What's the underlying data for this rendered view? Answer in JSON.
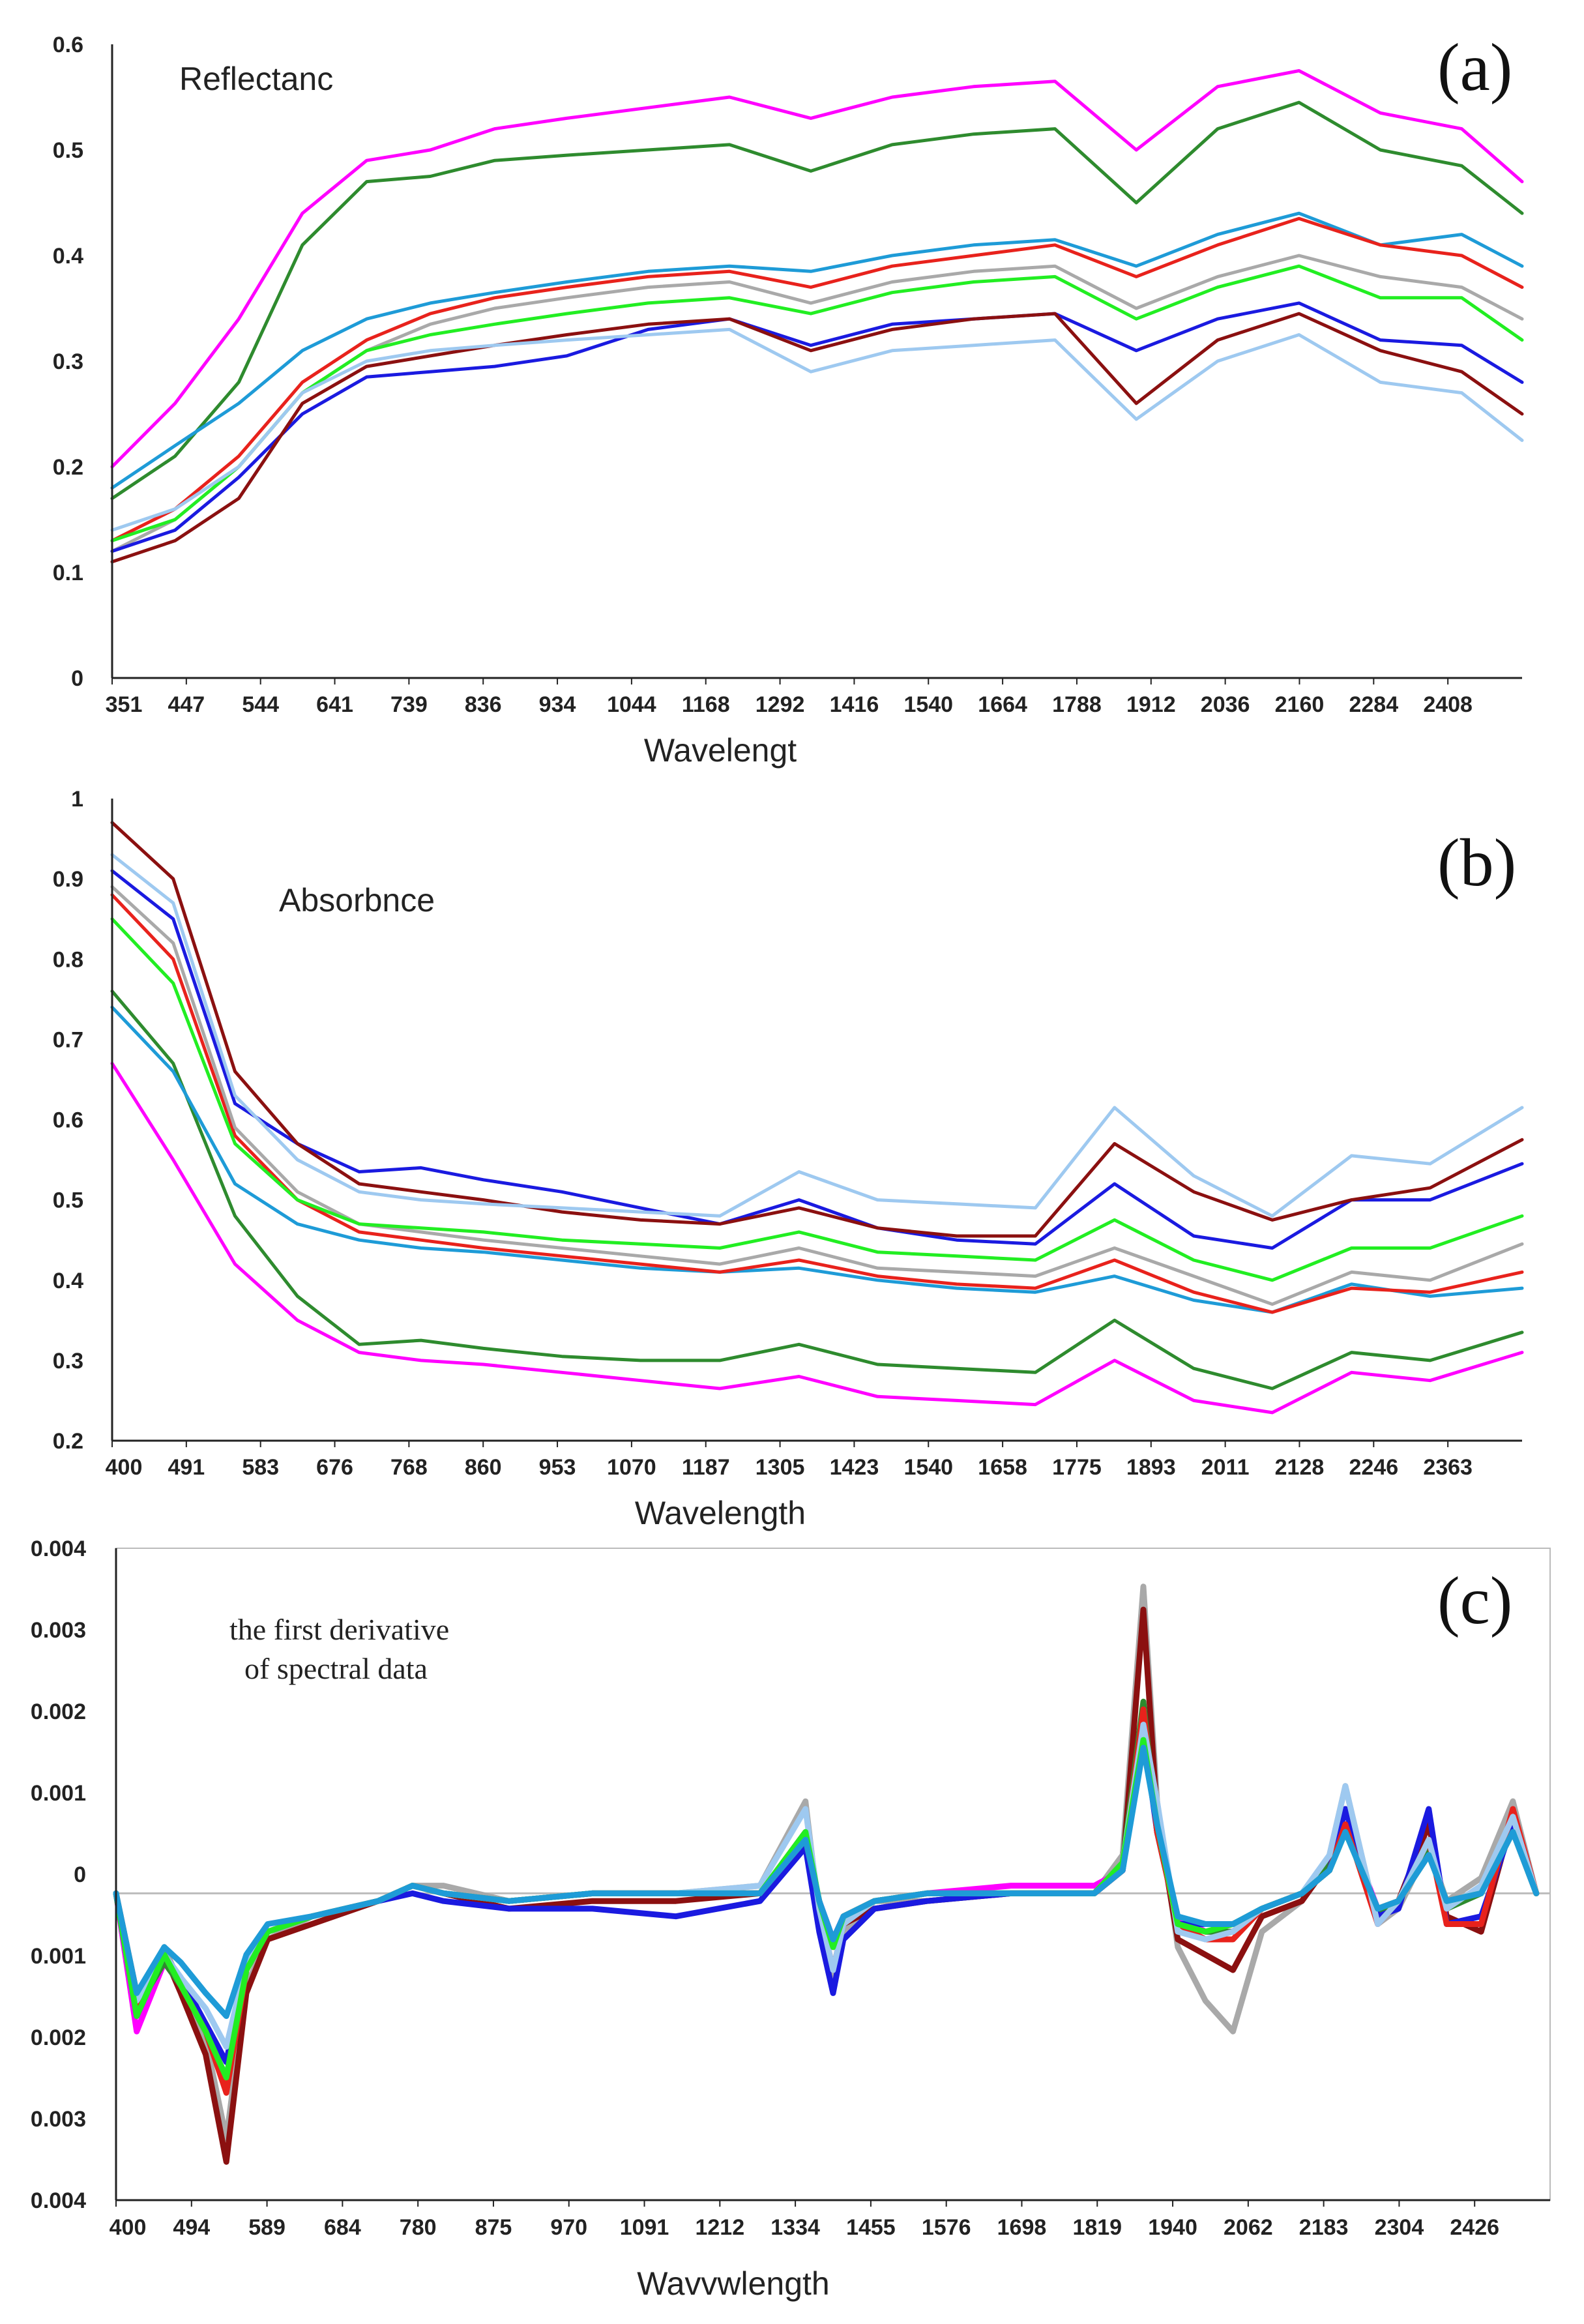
{
  "chart_data": [
    {
      "type": "line",
      "panel_label": "(a)",
      "annotation": [
        "Reflectanc"
      ],
      "xlabel": "Wavelengt",
      "ylabel": "",
      "x_ticks": [
        "351",
        "447",
        "544",
        "641",
        "739",
        "836",
        "934",
        "1044",
        "1168",
        "1292",
        "1416",
        "1540",
        "1664",
        "1788",
        "1912",
        "2036",
        "2160",
        "2284",
        "2408"
      ],
      "y_ticks": [
        "0.6",
        "0.5",
        "0.4",
        "0.3",
        "0.2",
        "0.1",
        "0"
      ],
      "xlim": [
        351,
        2500
      ],
      "ylim": [
        0,
        0.6
      ],
      "grid": false,
      "legend": "none",
      "x": [
        351,
        447,
        544,
        641,
        739,
        836,
        934,
        1044,
        1168,
        1292,
        1416,
        1540,
        1664,
        1788,
        1912,
        2036,
        2160,
        2284,
        2408,
        2500
      ],
      "series": [
        {
          "color": "#ff00ff",
          "values": [
            0.2,
            0.26,
            0.34,
            0.44,
            0.49,
            0.5,
            0.52,
            0.53,
            0.54,
            0.55,
            0.53,
            0.55,
            0.56,
            0.565,
            0.5,
            0.56,
            0.575,
            0.535,
            0.52,
            0.47
          ]
        },
        {
          "color": "#2e8b2e",
          "values": [
            0.17,
            0.21,
            0.28,
            0.41,
            0.47,
            0.475,
            0.49,
            0.495,
            0.5,
            0.505,
            0.48,
            0.505,
            0.515,
            0.52,
            0.45,
            0.52,
            0.545,
            0.5,
            0.485,
            0.44
          ]
        },
        {
          "color": "#1e9bd7",
          "values": [
            0.18,
            0.22,
            0.26,
            0.31,
            0.34,
            0.355,
            0.365,
            0.375,
            0.385,
            0.39,
            0.385,
            0.4,
            0.41,
            0.415,
            0.39,
            0.42,
            0.44,
            0.41,
            0.42,
            0.39
          ]
        },
        {
          "color": "#e8221c",
          "values": [
            0.13,
            0.16,
            0.21,
            0.28,
            0.32,
            0.345,
            0.36,
            0.37,
            0.38,
            0.385,
            0.37,
            0.39,
            0.4,
            0.41,
            0.38,
            0.41,
            0.435,
            0.41,
            0.4,
            0.37
          ]
        },
        {
          "color": "#a9a9a9",
          "values": [
            0.12,
            0.15,
            0.2,
            0.27,
            0.31,
            0.335,
            0.35,
            0.36,
            0.37,
            0.375,
            0.355,
            0.375,
            0.385,
            0.39,
            0.35,
            0.38,
            0.4,
            0.38,
            0.37,
            0.34
          ]
        },
        {
          "color": "#22ee22",
          "values": [
            0.13,
            0.15,
            0.2,
            0.27,
            0.31,
            0.325,
            0.335,
            0.345,
            0.355,
            0.36,
            0.345,
            0.365,
            0.375,
            0.38,
            0.34,
            0.37,
            0.39,
            0.36,
            0.36,
            0.32
          ]
        },
        {
          "color": "#1a1ae0",
          "values": [
            0.12,
            0.14,
            0.19,
            0.25,
            0.285,
            0.29,
            0.295,
            0.305,
            0.33,
            0.34,
            0.315,
            0.335,
            0.34,
            0.345,
            0.31,
            0.34,
            0.355,
            0.32,
            0.315,
            0.28
          ]
        },
        {
          "color": "#8b1010",
          "values": [
            0.11,
            0.13,
            0.17,
            0.26,
            0.295,
            0.305,
            0.315,
            0.325,
            0.335,
            0.34,
            0.31,
            0.33,
            0.34,
            0.345,
            0.26,
            0.32,
            0.345,
            0.31,
            0.29,
            0.25
          ]
        },
        {
          "color": "#9ec9f0",
          "values": [
            0.14,
            0.16,
            0.2,
            0.27,
            0.3,
            0.31,
            0.315,
            0.32,
            0.325,
            0.33,
            0.29,
            0.31,
            0.315,
            0.32,
            0.245,
            0.3,
            0.325,
            0.28,
            0.27,
            0.225
          ]
        }
      ]
    },
    {
      "type": "line",
      "panel_label": "(b)",
      "annotation": [
        "Absorbnce"
      ],
      "xlabel": "Wavelength",
      "ylabel": "",
      "x_ticks": [
        "400",
        "491",
        "583",
        "676",
        "768",
        "860",
        "953",
        "1070",
        "1187",
        "1305",
        "1423",
        "1540",
        "1658",
        "1775",
        "1893",
        "2011",
        "2128",
        "2246",
        "2363"
      ],
      "y_ticks": [
        "1",
        "0.9",
        "0.8",
        "0.7",
        "0.6",
        "0.5",
        "0.4",
        "0.3",
        "0.2"
      ],
      "xlim": [
        400,
        2500
      ],
      "ylim": [
        0.2,
        1
      ],
      "grid": false,
      "legend": "none",
      "x": [
        400,
        491,
        583,
        676,
        768,
        860,
        953,
        1070,
        1187,
        1305,
        1423,
        1540,
        1658,
        1775,
        1893,
        2011,
        2128,
        2246,
        2363,
        2500
      ],
      "series": [
        {
          "color": "#ff00ff",
          "values": [
            0.67,
            0.55,
            0.42,
            0.35,
            0.31,
            0.3,
            0.295,
            0.285,
            0.275,
            0.265,
            0.28,
            0.255,
            0.25,
            0.245,
            0.3,
            0.25,
            0.235,
            0.285,
            0.275,
            0.31
          ]
        },
        {
          "color": "#2e8b2e",
          "values": [
            0.76,
            0.67,
            0.48,
            0.38,
            0.32,
            0.325,
            0.315,
            0.305,
            0.3,
            0.3,
            0.32,
            0.295,
            0.29,
            0.285,
            0.35,
            0.29,
            0.265,
            0.31,
            0.3,
            0.335
          ]
        },
        {
          "color": "#1e9bd7",
          "values": [
            0.74,
            0.66,
            0.52,
            0.47,
            0.45,
            0.44,
            0.435,
            0.425,
            0.415,
            0.41,
            0.415,
            0.4,
            0.39,
            0.385,
            0.405,
            0.375,
            0.36,
            0.395,
            0.38,
            0.39
          ]
        },
        {
          "color": "#e8221c",
          "values": [
            0.88,
            0.8,
            0.58,
            0.5,
            0.46,
            0.45,
            0.44,
            0.43,
            0.42,
            0.41,
            0.425,
            0.405,
            0.395,
            0.39,
            0.425,
            0.385,
            0.36,
            0.39,
            0.385,
            0.41
          ]
        },
        {
          "color": "#a9a9a9",
          "values": [
            0.89,
            0.82,
            0.59,
            0.51,
            0.47,
            0.46,
            0.45,
            0.44,
            0.43,
            0.42,
            0.44,
            0.415,
            0.41,
            0.405,
            0.44,
            0.405,
            0.37,
            0.41,
            0.4,
            0.445
          ]
        },
        {
          "color": "#22ee22",
          "values": [
            0.85,
            0.77,
            0.57,
            0.5,
            0.47,
            0.465,
            0.46,
            0.45,
            0.445,
            0.44,
            0.46,
            0.435,
            0.43,
            0.425,
            0.475,
            0.425,
            0.4,
            0.44,
            0.44,
            0.48
          ]
        },
        {
          "color": "#1a1ae0",
          "values": [
            0.91,
            0.85,
            0.62,
            0.57,
            0.535,
            0.54,
            0.525,
            0.51,
            0.49,
            0.47,
            0.5,
            0.465,
            0.45,
            0.445,
            0.52,
            0.455,
            0.44,
            0.5,
            0.5,
            0.545
          ]
        },
        {
          "color": "#8b1010",
          "values": [
            0.97,
            0.9,
            0.66,
            0.57,
            0.52,
            0.51,
            0.5,
            0.485,
            0.475,
            0.47,
            0.49,
            0.465,
            0.455,
            0.455,
            0.57,
            0.51,
            0.475,
            0.5,
            0.515,
            0.575
          ]
        },
        {
          "color": "#9ec9f0",
          "values": [
            0.93,
            0.87,
            0.63,
            0.55,
            0.51,
            0.5,
            0.495,
            0.49,
            0.485,
            0.48,
            0.535,
            0.5,
            0.495,
            0.49,
            0.615,
            0.53,
            0.48,
            0.555,
            0.545,
            0.615
          ]
        }
      ]
    },
    {
      "type": "line",
      "panel_label": "(c)",
      "annotation": [
        "the first derivative",
        "of spectral data"
      ],
      "xlabel": "Wavvwlength",
      "ylabel": "",
      "x_ticks": [
        "400",
        "494",
        "589",
        "684",
        "780",
        "875",
        "970",
        "1091",
        "1212",
        "1334",
        "1455",
        "1576",
        "1698",
        "1819",
        "1940",
        "2062",
        "2183",
        "2304",
        "2426"
      ],
      "y_ticks": [
        "0.004",
        "0.003",
        "0.002",
        "0.001",
        "0",
        "0.001",
        "0.002",
        "0.003",
        "0.004"
      ],
      "xlim": [
        400,
        2480
      ],
      "ylim": [
        -0.004,
        0.0045
      ],
      "grid": false,
      "legend": "none",
      "x": [
        400,
        430,
        470,
        494,
        530,
        560,
        589,
        620,
        684,
        780,
        830,
        875,
        970,
        1091,
        1212,
        1334,
        1400,
        1420,
        1440,
        1455,
        1500,
        1576,
        1698,
        1819,
        1860,
        1890,
        1910,
        1940,
        1980,
        2020,
        2062,
        2120,
        2160,
        2183,
        2230,
        2260,
        2304,
        2330,
        2380,
        2426,
        2460
      ],
      "series": [
        {
          "color": "#a9a9a9",
          "values": [
            0,
            -0.0014,
            -0.0007,
            -0.0012,
            -0.0019,
            -0.0032,
            -0.0012,
            -0.0006,
            -0.0003,
            -0.0001,
            0.0001,
            0.0001,
            -0.0001,
            0,
            0,
            0.0001,
            0.0012,
            -0.0003,
            -0.0011,
            -0.0005,
            -0.0001,
            -0.0001,
            0,
            0,
            0.0005,
            0.004,
            0.0012,
            -0.0007,
            -0.0014,
            -0.0018,
            -0.0005,
            -0.0001,
            0.0005,
            0.0014,
            -0.0004,
            -0.0002,
            0.0006,
            -0.0001,
            0.0002,
            0.0012,
            0
          ]
        },
        {
          "color": "#8b1010",
          "values": [
            0,
            -0.0013,
            -0.0008,
            -0.0013,
            -0.0021,
            -0.0035,
            -0.0013,
            -0.0006,
            -0.0004,
            -0.0001,
            0.0001,
            0,
            -0.0002,
            -0.0001,
            -0.0001,
            0,
            0.0008,
            -0.0002,
            -0.001,
            -0.0004,
            -0.0002,
            -0.0001,
            0,
            0,
            0.0003,
            0.0037,
            0.001,
            -0.0006,
            -0.0008,
            -0.001,
            -0.0003,
            -0.0001,
            0.0004,
            0.0011,
            -0.0003,
            -0.0001,
            0.0009,
            -0.0003,
            -0.0005,
            0.001,
            0
          ]
        },
        {
          "color": "#ff00ff",
          "values": [
            0,
            -0.0018,
            -0.0009,
            -0.0012,
            -0.0017,
            -0.0022,
            -0.0009,
            -0.0005,
            -0.0003,
            -0.0001,
            0.0001,
            0,
            -0.0001,
            0,
            0,
            0,
            0.0007,
            -0.0001,
            -0.0006,
            -0.0003,
            -0.0001,
            0,
            0.0001,
            0.0001,
            0.0003,
            0.0023,
            0.0008,
            -0.0003,
            -0.0005,
            -0.0005,
            -0.0002,
            0,
            0.0003,
            0.0009,
            -0.0002,
            -0.0001,
            0.0005,
            -0.0001,
            0,
            0.0008,
            0
          ]
        },
        {
          "color": "#2e8b2e",
          "values": [
            0,
            -0.0015,
            -0.0009,
            -0.0012,
            -0.0018,
            -0.0024,
            -0.001,
            -0.0005,
            -0.0003,
            -0.0001,
            0.0001,
            0,
            -0.0001,
            0,
            0,
            0,
            0.0007,
            -0.0001,
            -0.0007,
            -0.0003,
            -0.0001,
            0,
            0,
            0,
            0.0004,
            0.0025,
            0.0008,
            -0.0004,
            -0.0005,
            -0.0005,
            -0.0002,
            0,
            0.0004,
            0.0009,
            -0.0003,
            -0.0001,
            0.0006,
            -0.0002,
            0,
            0.0009,
            0
          ]
        },
        {
          "color": "#1a1ae0",
          "values": [
            0,
            -0.0016,
            -0.0008,
            -0.0011,
            -0.0017,
            -0.0022,
            -0.0009,
            -0.0005,
            -0.0003,
            -0.0001,
            0,
            -0.0001,
            -0.0002,
            -0.0002,
            -0.0003,
            -0.0001,
            0.0006,
            -0.0005,
            -0.0013,
            -0.0006,
            -0.0002,
            -0.0001,
            0,
            0,
            0.0003,
            0.0021,
            0.0008,
            -0.0004,
            -0.0004,
            -0.0004,
            -0.0002,
            0,
            0.0003,
            0.0011,
            -0.0003,
            -0.0002,
            0.0011,
            -0.0004,
            -0.0003,
            0.0009,
            0
          ]
        },
        {
          "color": "#e8221c",
          "values": [
            0,
            -0.0015,
            -0.0008,
            -0.0012,
            -0.0018,
            -0.0026,
            -0.001,
            -0.0005,
            -0.0003,
            -0.0001,
            0.0001,
            0,
            -0.0001,
            0,
            0,
            0,
            0.0007,
            -0.0001,
            -0.0007,
            -0.0003,
            -0.0001,
            0,
            0,
            0,
            0.0003,
            0.0024,
            0.0008,
            -0.0004,
            -0.0006,
            -0.0006,
            -0.0002,
            0,
            0.0003,
            0.0009,
            -0.0004,
            -0.0001,
            0.0007,
            -0.0004,
            -0.0004,
            0.0011,
            0
          ]
        },
        {
          "color": "#9ec9f0",
          "values": [
            0,
            -0.0014,
            -0.0008,
            -0.0011,
            -0.0015,
            -0.002,
            -0.0009,
            -0.0005,
            -0.0003,
            -0.0001,
            0.0001,
            0,
            -0.0001,
            0,
            0,
            0.0001,
            0.0011,
            -0.0002,
            -0.001,
            -0.0004,
            -0.0001,
            0,
            0,
            0,
            0.0004,
            0.0022,
            0.0012,
            -0.0005,
            -0.0006,
            -0.0005,
            -0.0002,
            0,
            0.0005,
            0.0014,
            -0.0004,
            -0.0001,
            0.0007,
            -0.0002,
            0.0001,
            0.001,
            0
          ]
        },
        {
          "color": "#22ee22",
          "values": [
            0,
            -0.0016,
            -0.0008,
            -0.0012,
            -0.0018,
            -0.0024,
            -0.001,
            -0.0005,
            -0.0003,
            -0.0001,
            0.0001,
            0,
            -0.0001,
            0,
            0,
            0,
            0.0008,
            -0.0001,
            -0.0007,
            -0.0003,
            -0.0001,
            0,
            0,
            0,
            0.0004,
            0.002,
            0.0009,
            -0.0004,
            -0.0005,
            -0.0004,
            -0.0002,
            0,
            0.0003,
            0.0008,
            -0.0002,
            -0.0001,
            0.0005,
            -0.0001,
            0,
            0.0008,
            0
          ]
        },
        {
          "color": "#1e9bd7",
          "values": [
            0,
            -0.0013,
            -0.0007,
            -0.0009,
            -0.0013,
            -0.0016,
            -0.0008,
            -0.0004,
            -0.0003,
            -0.0001,
            0.0001,
            0,
            -0.0001,
            0,
            0,
            0,
            0.0007,
            -0.0001,
            -0.0006,
            -0.0003,
            -0.0001,
            0,
            0,
            0,
            0.0003,
            0.0019,
            0.0009,
            -0.0003,
            -0.0004,
            -0.0004,
            -0.0002,
            0,
            0.0003,
            0.0008,
            -0.0002,
            -0.0001,
            0.0005,
            -0.0001,
            0,
            0.0008,
            0
          ]
        }
      ]
    }
  ]
}
